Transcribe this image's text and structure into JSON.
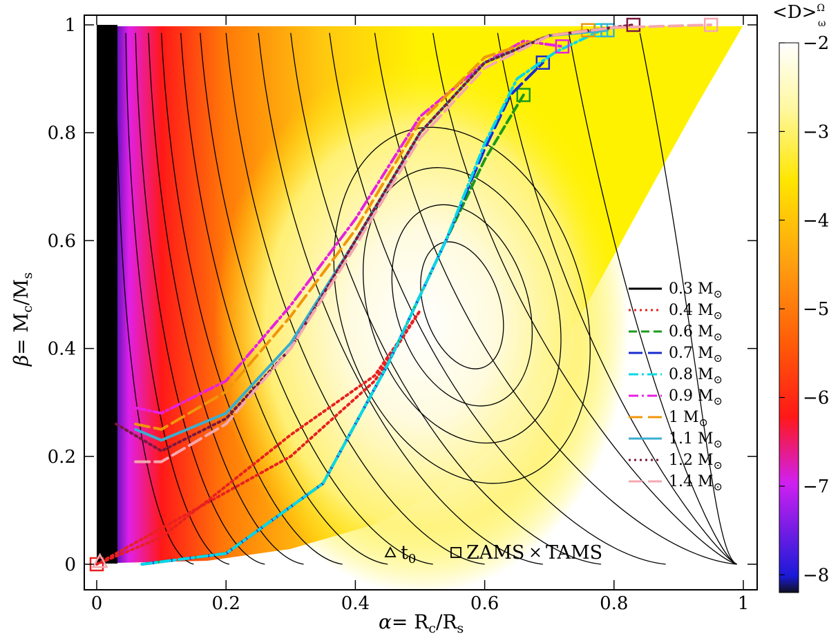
{
  "chart_data": {
    "type": "contour",
    "xlabel": "α= R_c/R_s",
    "ylabel": "β= M_c/M_s",
    "xlim": [
      0,
      1
    ],
    "ylim": [
      0,
      1
    ],
    "xticks": [
      "0",
      "0.2",
      "0.4",
      "0.6",
      "0.8",
      "1"
    ],
    "yticks": [
      "0",
      "0.2",
      "0.4",
      "0.6",
      "0.8",
      "1"
    ],
    "colorbar": {
      "label": "<D>",
      "label_sup": "Ω",
      "label_sub": "ω",
      "range": [
        -8.2,
        -2
      ],
      "ticks": [
        "−2",
        "−3",
        "−4",
        "−5",
        "−6",
        "−7",
        "−8"
      ],
      "tick_values": [
        -2,
        -3,
        -4,
        -5,
        -6,
        -7,
        -8
      ]
    },
    "series": [
      {
        "name": "0.3 M",
        "color": "#000000",
        "dash": "solid",
        "points": []
      },
      {
        "name": "0.4 M",
        "color": "#e82020",
        "dash": "dot",
        "points": [
          [
            0,
            0
          ],
          [
            0.15,
            0.1
          ],
          [
            0.3,
            0.2
          ],
          [
            0.43,
            0.34
          ],
          [
            0.5,
            0.47
          ],
          [
            0.43,
            0.35
          ],
          [
            0.3,
            0.24
          ],
          [
            0.1,
            0.05
          ],
          [
            0,
            0
          ]
        ]
      },
      {
        "name": "0.6 M",
        "color": "#1a9a1a",
        "dash": "dash",
        "points": [
          [
            0.07,
            0.0
          ],
          [
            0.2,
            0.02
          ],
          [
            0.35,
            0.15
          ],
          [
            0.45,
            0.37
          ],
          [
            0.54,
            0.6
          ],
          [
            0.6,
            0.75
          ],
          [
            0.65,
            0.85
          ],
          [
            0.66,
            0.87
          ]
        ]
      },
      {
        "name": "0.7 M",
        "color": "#1a2ad0",
        "dash": "longdash",
        "points": [
          [
            0.07,
            0.0
          ],
          [
            0.2,
            0.02
          ],
          [
            0.35,
            0.15
          ],
          [
            0.45,
            0.37
          ],
          [
            0.54,
            0.6
          ],
          [
            0.6,
            0.77
          ],
          [
            0.64,
            0.87
          ],
          [
            0.69,
            0.93
          ]
        ]
      },
      {
        "name": "0.8 M",
        "color": "#00d8e8",
        "dash": "dashdot",
        "points": [
          [
            0.07,
            0.0
          ],
          [
            0.2,
            0.02
          ],
          [
            0.35,
            0.15
          ],
          [
            0.45,
            0.37
          ],
          [
            0.54,
            0.6
          ],
          [
            0.6,
            0.78
          ],
          [
            0.65,
            0.9
          ],
          [
            0.71,
            0.95
          ],
          [
            0.78,
            0.99
          ]
        ]
      },
      {
        "name": "0.9 M",
        "color": "#e820e0",
        "dash": "dashdot",
        "points": [
          [
            0.06,
            0.29
          ],
          [
            0.1,
            0.28
          ],
          [
            0.2,
            0.34
          ],
          [
            0.3,
            0.48
          ],
          [
            0.4,
            0.64
          ],
          [
            0.5,
            0.83
          ],
          [
            0.6,
            0.93
          ],
          [
            0.66,
            0.97
          ],
          [
            0.72,
            0.96
          ]
        ]
      },
      {
        "name": "1 M",
        "color": "#f0960a",
        "dash": "longdash",
        "points": [
          [
            0.06,
            0.26
          ],
          [
            0.1,
            0.25
          ],
          [
            0.2,
            0.32
          ],
          [
            0.3,
            0.46
          ],
          [
            0.4,
            0.62
          ],
          [
            0.5,
            0.82
          ],
          [
            0.6,
            0.94
          ],
          [
            0.7,
            0.98
          ],
          [
            0.76,
            0.99
          ]
        ]
      },
      {
        "name": "1.1 M",
        "color": "#3aaecf",
        "dash": "solid",
        "points": [
          [
            0.06,
            0.25
          ],
          [
            0.1,
            0.23
          ],
          [
            0.2,
            0.28
          ],
          [
            0.3,
            0.41
          ],
          [
            0.4,
            0.6
          ],
          [
            0.5,
            0.8
          ],
          [
            0.6,
            0.93
          ],
          [
            0.7,
            0.98
          ],
          [
            0.79,
            0.99
          ]
        ]
      },
      {
        "name": "1.2 M",
        "color": "#7a1840",
        "dash": "dot",
        "points": [
          [
            0.03,
            0.26
          ],
          [
            0.1,
            0.21
          ],
          [
            0.2,
            0.27
          ],
          [
            0.3,
            0.4
          ],
          [
            0.4,
            0.6
          ],
          [
            0.5,
            0.8
          ],
          [
            0.6,
            0.93
          ],
          [
            0.7,
            0.98
          ],
          [
            0.83,
            1.0
          ]
        ]
      },
      {
        "name": "1.4 M",
        "color": "#f4a8b0",
        "dash": "longdash",
        "points": [
          [
            0.06,
            0.19
          ],
          [
            0.1,
            0.19
          ],
          [
            0.2,
            0.26
          ],
          [
            0.3,
            0.4
          ],
          [
            0.4,
            0.59
          ],
          [
            0.5,
            0.79
          ],
          [
            0.6,
            0.92
          ],
          [
            0.7,
            0.98
          ],
          [
            0.8,
            0.995
          ],
          [
            0.95,
            1.0
          ]
        ]
      }
    ],
    "markers_legend": [
      {
        "symbol": "triangle",
        "label": "t",
        "sub": "0"
      },
      {
        "symbol": "square",
        "label": "ZAMS",
        "sub": ""
      },
      {
        "symbol": "cross",
        "label": "TAMS",
        "sub": ""
      }
    ],
    "legend_unit_symbol": "⊙",
    "legend_position": "center-right"
  }
}
